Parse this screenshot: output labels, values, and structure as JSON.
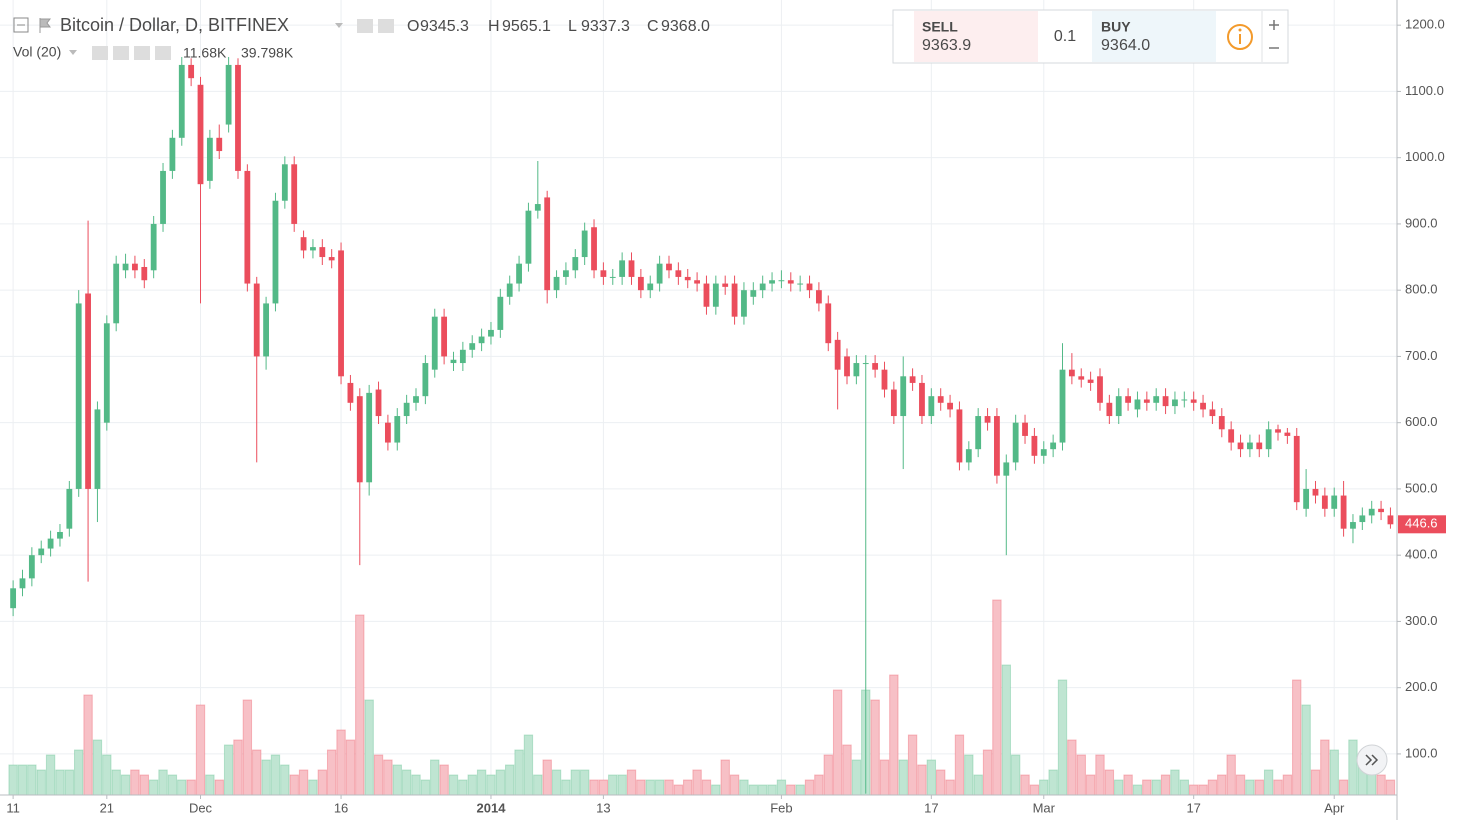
{
  "chart_data": {
    "type": "candlestick",
    "title": "Bitcoin / Dollar, D, BITFINEX",
    "ohlc_legend": [
      {
        "label": "O",
        "value": "9345.3"
      },
      {
        "label": "H",
        "value": "9565.1"
      },
      {
        "label": "L",
        "value": "9337.3"
      },
      {
        "label": "C",
        "value": "9368.0"
      }
    ],
    "volume_legend": {
      "label": "Vol (20)",
      "value": "11.68K",
      "average": "39.798K"
    },
    "trade_panel": {
      "sell_label": "SELL",
      "sell_price_head": "93",
      "sell_price_tail": "63.9",
      "quantity": "0.1",
      "buy_label": "BUY",
      "buy_price_head": "93",
      "buy_price_tail": "64.0"
    },
    "up_color": "#53b987",
    "down_color": "#eb4d5c",
    "up_volume_color": "#bfe5d2",
    "down_volume_color": "#f7c0c6",
    "grid": true,
    "x": [
      0,
      1,
      2,
      3,
      4,
      5,
      6,
      7,
      8,
      9,
      10,
      11,
      12,
      13,
      14,
      15,
      16,
      17,
      18,
      19,
      20,
      21,
      22,
      23,
      24,
      25,
      26,
      27,
      28,
      29,
      30,
      31,
      32,
      33,
      34,
      35,
      36,
      37,
      38,
      39,
      40,
      41,
      42,
      43,
      44,
      45,
      46,
      47,
      48,
      49,
      50,
      51,
      52,
      53,
      54,
      55,
      56,
      57,
      58,
      59,
      60,
      61,
      62,
      63,
      64,
      65,
      66,
      67,
      68,
      69,
      70,
      71,
      72,
      73,
      74,
      75,
      76,
      77,
      78,
      79,
      80,
      81,
      82,
      83,
      84,
      85,
      86,
      87,
      88,
      89,
      90,
      91,
      92,
      93,
      94,
      95,
      96,
      97,
      98,
      99,
      100,
      101,
      102,
      103,
      104,
      105,
      106,
      107,
      108,
      109,
      110,
      111,
      112,
      113,
      114,
      115,
      116,
      117,
      118,
      119,
      120,
      121,
      122,
      123,
      124,
      125,
      126,
      127,
      128,
      129,
      130,
      131,
      132,
      133,
      134,
      135,
      136,
      137,
      138,
      139,
      140,
      141,
      142,
      143,
      144,
      145,
      146,
      147
    ],
    "open": [
      320,
      350,
      365,
      400,
      410,
      425,
      440,
      500,
      795,
      500,
      600,
      750,
      830,
      840,
      835,
      830,
      900,
      980,
      1030,
      1140,
      1110,
      965,
      1030,
      1050,
      1140,
      980,
      810,
      700,
      780,
      935,
      990,
      880,
      860,
      865,
      850,
      860,
      660,
      640,
      510,
      650,
      600,
      570,
      610,
      630,
      640,
      680,
      760,
      690,
      690,
      710,
      720,
      730,
      740,
      790,
      810,
      840,
      920,
      940,
      800,
      820,
      830,
      850,
      895,
      830,
      820,
      820,
      845,
      820,
      800,
      810,
      840,
      830,
      820,
      815,
      810,
      775,
      810,
      810,
      760,
      790,
      800,
      810,
      815,
      815,
      810,
      810,
      800,
      780,
      725,
      700,
      670,
      690,
      690,
      680,
      650,
      610,
      670,
      660,
      610,
      640,
      630,
      620,
      540,
      560,
      610,
      610,
      520,
      540,
      600,
      580,
      550,
      560,
      570,
      680,
      670,
      665,
      670,
      630,
      610,
      640,
      620,
      635,
      630,
      640,
      625,
      635,
      635,
      630,
      620,
      610,
      590,
      570,
      560,
      570,
      560,
      590,
      585,
      580,
      470,
      500,
      490,
      470,
      490,
      440,
      450,
      460,
      470,
      460
    ],
    "high": [
      362,
      378,
      412,
      422,
      437,
      447,
      512,
      800,
      905,
      632,
      762,
      852,
      855,
      852,
      847,
      912,
      992,
      1042,
      1152,
      1150,
      1122,
      1042,
      1050,
      1152,
      1150,
      990,
      820,
      790,
      947,
      1002,
      1002,
      890,
      877,
      877,
      862,
      872,
      672,
      652,
      657,
      662,
      612,
      622,
      642,
      652,
      702,
      772,
      772,
      707,
      722,
      732,
      742,
      752,
      802,
      822,
      852,
      932,
      995,
      950,
      830,
      842,
      862,
      902,
      907,
      842,
      832,
      857,
      857,
      832,
      822,
      852,
      852,
      842,
      832,
      827,
      822,
      822,
      822,
      822,
      812,
      812,
      822,
      827,
      830,
      827,
      822,
      822,
      812,
      792,
      737,
      712,
      702,
      702,
      702,
      692,
      662,
      700,
      682,
      672,
      652,
      652,
      642,
      632,
      572,
      622,
      622,
      622,
      552,
      612,
      612,
      592,
      572,
      582,
      720,
      705,
      682,
      677,
      682,
      642,
      652,
      652,
      647,
      647,
      652,
      652,
      647,
      647,
      647,
      642,
      632,
      622,
      602,
      582,
      582,
      582,
      602,
      597,
      592,
      592,
      530,
      512,
      502,
      502,
      512,
      462,
      472,
      482,
      482,
      472
    ],
    "low": [
      308,
      338,
      353,
      388,
      398,
      413,
      428,
      488,
      360,
      450,
      588,
      738,
      818,
      818,
      803,
      818,
      888,
      968,
      1018,
      1108,
      780,
      953,
      998,
      1038,
      968,
      798,
      540,
      680,
      768,
      923,
      888,
      848,
      848,
      838,
      833,
      658,
      618,
      385,
      490,
      598,
      558,
      558,
      598,
      618,
      628,
      668,
      688,
      678,
      678,
      698,
      708,
      718,
      728,
      778,
      798,
      828,
      908,
      780,
      788,
      808,
      818,
      838,
      818,
      808,
      808,
      808,
      808,
      788,
      788,
      798,
      818,
      808,
      803,
      798,
      763,
      763,
      793,
      748,
      748,
      778,
      788,
      798,
      803,
      798,
      798,
      788,
      768,
      708,
      620,
      658,
      658,
      40,
      668,
      638,
      598,
      530,
      648,
      598,
      598,
      618,
      608,
      528,
      528,
      548,
      588,
      508,
      400,
      528,
      568,
      538,
      538,
      548,
      558,
      658,
      653,
      648,
      618,
      598,
      598,
      618,
      608,
      618,
      618,
      613,
      613,
      623,
      618,
      608,
      598,
      578,
      558,
      548,
      548,
      548,
      548,
      573,
      568,
      468,
      458,
      478,
      458,
      458,
      428,
      418,
      438,
      448,
      453,
      440
    ],
    "close": [
      350,
      365,
      400,
      410,
      425,
      435,
      500,
      780,
      500,
      620,
      750,
      840,
      840,
      830,
      815,
      900,
      980,
      1030,
      1140,
      1120,
      960,
      1030,
      1010,
      1140,
      980,
      810,
      700,
      780,
      935,
      990,
      900,
      860,
      865,
      850,
      845,
      670,
      630,
      510,
      645,
      610,
      570,
      610,
      630,
      640,
      690,
      760,
      700,
      695,
      710,
      720,
      730,
      740,
      790,
      810,
      840,
      920,
      930,
      800,
      820,
      830,
      850,
      890,
      830,
      820,
      820,
      845,
      820,
      800,
      810,
      840,
      830,
      820,
      815,
      810,
      775,
      810,
      805,
      760,
      800,
      800,
      810,
      815,
      815,
      810,
      810,
      800,
      780,
      720,
      680,
      670,
      690,
      690,
      680,
      650,
      610,
      670,
      660,
      610,
      640,
      630,
      620,
      540,
      560,
      610,
      600,
      520,
      540,
      600,
      580,
      550,
      560,
      570,
      680,
      670,
      665,
      660,
      630,
      610,
      640,
      630,
      635,
      630,
      640,
      625,
      635,
      635,
      630,
      620,
      610,
      590,
      570,
      560,
      570,
      560,
      590,
      585,
      580,
      480,
      500,
      490,
      470,
      490,
      440,
      450,
      460,
      470,
      465,
      446.6
    ],
    "volume": [
      23400,
      23400,
      23400,
      19500,
      31200,
      19500,
      19500,
      35100,
      78000,
      42900,
      31200,
      19500,
      15600,
      19500,
      15600,
      11700,
      19500,
      15600,
      11700,
      11700,
      70200,
      15600,
      11700,
      39000,
      42900,
      74100,
      35100,
      27300,
      31200,
      23400,
      15600,
      19500,
      11700,
      19500,
      35100,
      50700,
      42900,
      140400,
      74100,
      31200,
      27300,
      23400,
      19500,
      15600,
      11700,
      27300,
      23400,
      15600,
      11700,
      15600,
      19500,
      15600,
      19500,
      23400,
      35100,
      46800,
      15600,
      27300,
      19500,
      11700,
      19500,
      19500,
      11700,
      11700,
      15600,
      15600,
      19500,
      11700,
      11700,
      11700,
      11700,
      7800,
      11700,
      19500,
      11700,
      7800,
      27300,
      15600,
      11700,
      7800,
      7800,
      7800,
      11700,
      7800,
      7800,
      11700,
      15600,
      31200,
      81900,
      39000,
      27300,
      81900,
      74100,
      27300,
      93600,
      27300,
      46800,
      23400,
      27300,
      19500,
      11700,
      46800,
      31200,
      15600,
      35100,
      152100,
      101400,
      31200,
      15600,
      7800,
      11700,
      19500,
      89700,
      42900,
      31200,
      15600,
      31200,
      19500,
      11700,
      15600,
      7800,
      11700,
      11700,
      15600,
      19500,
      11700,
      7800,
      7800,
      11700,
      15600,
      31200,
      15600,
      11700,
      11700,
      19500,
      11700,
      15600,
      89700,
      70200,
      19500,
      42900,
      35100,
      11700,
      42900,
      27300,
      23400,
      15600,
      11680
    ],
    "xlim": [
      -1.4,
      147.7
    ],
    "xticks": [
      {
        "value": 0,
        "label": "11"
      },
      {
        "value": 10,
        "label": "21"
      },
      {
        "value": 20,
        "label": "Dec"
      },
      {
        "value": 35,
        "label": "16"
      },
      {
        "value": 51,
        "label": "2014"
      },
      {
        "value": 63,
        "label": "13"
      },
      {
        "value": 82,
        "label": "Feb"
      },
      {
        "value": 98,
        "label": "17"
      },
      {
        "value": 110,
        "label": "Mar"
      },
      {
        "value": 126,
        "label": "17"
      },
      {
        "value": 141,
        "label": "Apr"
      }
    ],
    "ylim": [
      38,
      1238
    ],
    "yticks": [
      {
        "value": 100,
        "label": "100.0"
      },
      {
        "value": 200,
        "label": "200.0"
      },
      {
        "value": 300,
        "label": "300.0"
      },
      {
        "value": 400,
        "label": "400.0"
      },
      {
        "value": 500,
        "label": "500.0"
      },
      {
        "value": 600,
        "label": "600.0"
      },
      {
        "value": 700,
        "label": "700.0"
      },
      {
        "value": 800,
        "label": "800.0"
      },
      {
        "value": 900,
        "label": "900.0"
      },
      {
        "value": 1000,
        "label": "1000.0"
      },
      {
        "value": 1100,
        "label": "1100.0"
      },
      {
        "value": 1200,
        "label": "1200.0"
      }
    ],
    "volume_ylim": [
      0,
      620100
    ]
  }
}
